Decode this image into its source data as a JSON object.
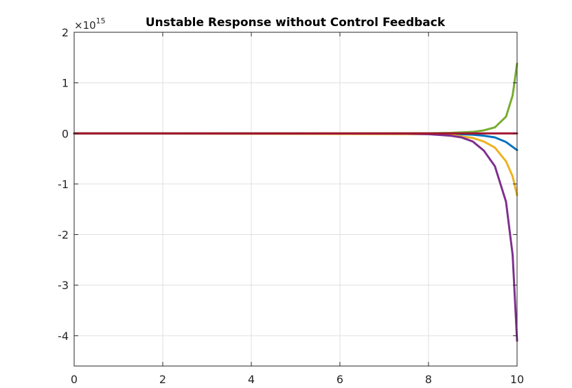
{
  "chart_data": {
    "type": "line",
    "title": "Unstable Response without Control Feedback",
    "xlabel": "",
    "ylabel": "",
    "y_scale_multiplier": {
      "base": "×10",
      "exponent": "15"
    },
    "xlim": [
      0,
      10
    ],
    "ylim": [
      -4.6,
      2
    ],
    "x_ticks": [
      0,
      2,
      4,
      6,
      8,
      10
    ],
    "x_tick_labels": [
      "0",
      "2",
      "4",
      "6",
      "8",
      "10"
    ],
    "y_ticks": [
      2,
      1,
      0,
      -1,
      -2,
      -3,
      -4
    ],
    "y_tick_labels": [
      "2",
      "1",
      "0",
      "-1",
      "-2",
      "-3",
      "-4"
    ],
    "grid": true,
    "box": true,
    "series": [
      {
        "color": "#0072bd",
        "x": [
          0,
          8.0,
          8.5,
          9.0,
          9.25,
          9.5,
          9.75,
          10.0
        ],
        "y": [
          0,
          -0.004,
          -0.008,
          -0.025,
          -0.045,
          -0.08,
          -0.17,
          -0.33
        ]
      },
      {
        "color": "#edb120",
        "x": [
          0,
          8.0,
          8.5,
          9.0,
          9.25,
          9.5,
          9.75,
          9.9,
          10.0
        ],
        "y": [
          0,
          -0.015,
          -0.03,
          -0.09,
          -0.16,
          -0.28,
          -0.55,
          -0.85,
          -1.22
        ]
      },
      {
        "color": "#7e2f8e",
        "x": [
          0,
          7.5,
          8.0,
          8.5,
          8.75,
          9.0,
          9.25,
          9.5,
          9.75,
          9.9,
          10.0
        ],
        "y": [
          0,
          -0.004,
          -0.015,
          -0.045,
          -0.08,
          -0.16,
          -0.34,
          -0.65,
          -1.35,
          -2.4,
          -4.1
        ]
      },
      {
        "color": "#77ac30",
        "x": [
          0,
          8.0,
          8.5,
          9.0,
          9.25,
          9.5,
          9.75,
          9.9,
          10.0
        ],
        "y": [
          0,
          0.003,
          0.01,
          0.03,
          0.06,
          0.12,
          0.33,
          0.75,
          1.38
        ]
      },
      {
        "color": "#a2142f",
        "x": [
          0,
          10.0
        ],
        "y": [
          0,
          0.0
        ]
      }
    ]
  }
}
